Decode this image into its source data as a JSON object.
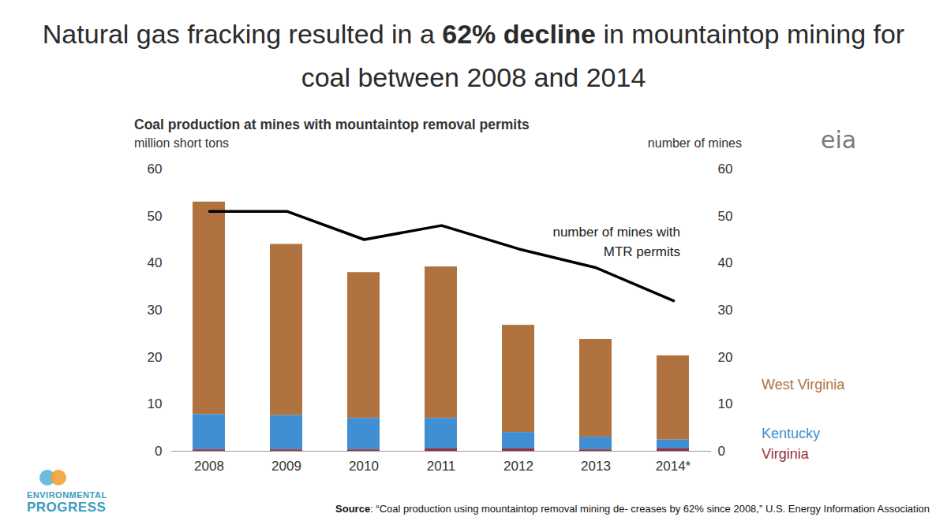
{
  "chart_data": {
    "type": "bar",
    "title": "Natural gas fracking resulted in a 62% decline in mountaintop mining for coal between 2008 and 2014",
    "title_emphasis": "62% decline",
    "subtitle": "Coal production at mines with mountaintop removal permits",
    "y_label": "million short tons",
    "y2_label": "number of mines",
    "categories": [
      "2008",
      "2009",
      "2010",
      "2011",
      "2012",
      "2013",
      "2014*"
    ],
    "stacked": true,
    "series": [
      {
        "name": "West Virginia",
        "color": "#b0733f",
        "values": [
          45.2,
          36.4,
          31.0,
          32.2,
          22.8,
          20.8,
          17.9
        ]
      },
      {
        "name": "Kentucky",
        "color": "#3f8fd2",
        "values": [
          7.5,
          7.3,
          6.7,
          6.5,
          3.5,
          2.7,
          1.9
        ]
      },
      {
        "name": "Virginia",
        "color": "#9b2d3a",
        "values": [
          0.3,
          0.3,
          0.3,
          0.5,
          0.5,
          0.3,
          0.5
        ]
      },
      {
        "name": "number of mines with MTR permits",
        "type": "line",
        "axis": "y2",
        "color": "#000000",
        "values": [
          51,
          51,
          45,
          48,
          43,
          39,
          32
        ]
      }
    ],
    "ylim": [
      0,
      60
    ],
    "yticks": [
      0,
      10,
      20,
      30,
      40,
      50,
      60
    ],
    "y2lim": [
      0,
      60
    ],
    "y2ticks": [
      0,
      10,
      20,
      30,
      40,
      50,
      60
    ],
    "grid": false,
    "legend": "right",
    "source": "Source: “Coal production using mountaintop removal mining de- creases by 62% since 2008,” U.S. Energy Information Association",
    "logos": [
      "eia",
      "ENVIRONMENTAL PROGRESS"
    ]
  }
}
